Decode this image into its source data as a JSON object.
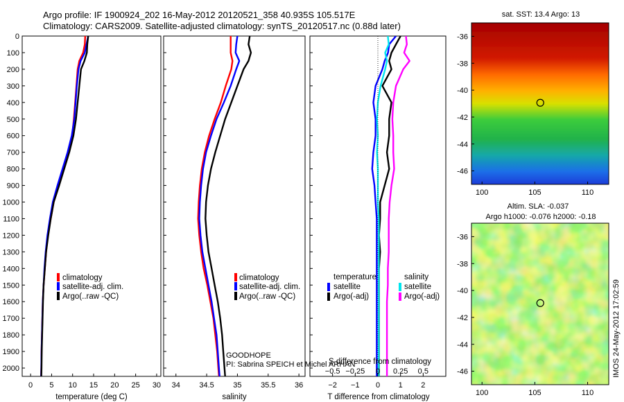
{
  "header": {
    "line1": "Argo profile: IF 1900924_202 16-May-2012 20120521_358 40.935S 105.517E",
    "line2": "Climatology: CARS2009. Satellite-adjusted climatology: synTS_20120517.nc (0.88d later)"
  },
  "depth_ticks": [
    "0",
    "100",
    "200",
    "300",
    "400",
    "500",
    "600",
    "700",
    "800",
    "900",
    "1000",
    "1100",
    "1200",
    "1300",
    "1400",
    "1500",
    "1600",
    "1700",
    "1800",
    "1900",
    "2000"
  ],
  "footer": {
    "watermark": "IMOS 24-May-2012 17:02:59",
    "project": "GOODHOPE",
    "pi": "PI: Sabrina SPEICH et Michel ARHAN"
  },
  "colors": {
    "climatology": "#ff0000",
    "satellite": "#0000ff",
    "argo": "#000000",
    "sat_salinity": "#00e5ee",
    "argo_salinity": "#ff00ff"
  },
  "chart_data": [
    {
      "type": "line",
      "id": "temperature",
      "xlabel": "temperature (deg C)",
      "ylabel": "",
      "xlim": [
        -2,
        31
      ],
      "ylim": [
        2050,
        0
      ],
      "xticks": [
        0,
        5,
        10,
        15,
        20,
        25,
        30
      ],
      "legend": {
        "placement": "lower-center",
        "entries": [
          "climatology",
          "satellite-adj. clim.",
          "Argo(..raw -QC)"
        ]
      },
      "depth": [
        0,
        50,
        100,
        150,
        200,
        300,
        400,
        500,
        600,
        700,
        800,
        900,
        1000,
        1100,
        1200,
        1300,
        1400,
        1500,
        1600,
        1700,
        1800,
        1900,
        2000,
        2050
      ],
      "series": [
        {
          "name": "climatology",
          "color": "#ff0000",
          "values": [
            13,
            12.9,
            12.5,
            11.6,
            11.2,
            10.9,
            10.6,
            10.3,
            9.9,
            9.1,
            7.8,
            6.7,
            5.5,
            4.8,
            4.1,
            3.7,
            3.4,
            3.1,
            2.9,
            2.8,
            2.7,
            2.6,
            2.55,
            2.5
          ]
        },
        {
          "name": "satellite-adj. clim.",
          "color": "#0000ff",
          "values": [
            13.7,
            13.3,
            12.9,
            11.9,
            11.4,
            11,
            10.7,
            10.4,
            9.8,
            8.8,
            7.6,
            6.4,
            5.3,
            4.6,
            4,
            3.6,
            3.3,
            3.1,
            2.9,
            2.8,
            2.7,
            2.6,
            2.55,
            2.5
          ]
        },
        {
          "name": "Argo(..raw -QC)",
          "color": "#000000",
          "values": [
            13.7,
            13.5,
            13.4,
            12.8,
            12,
            11.6,
            11.2,
            10.8,
            10.2,
            9.2,
            8,
            6.8,
            5.5,
            4.8,
            4.2,
            3.7,
            3.4,
            3.1,
            2.95,
            2.85,
            2.75,
            2.65,
            2.6,
            2.55
          ]
        }
      ]
    },
    {
      "type": "line",
      "id": "salinity",
      "xlabel": "salinity",
      "ylabel": "",
      "xlim": [
        33.8,
        36.1
      ],
      "ylim": [
        2050,
        0
      ],
      "xticks": [
        34,
        34.5,
        35,
        35.5,
        36
      ],
      "xtick_labels": [
        "34",
        "34.5",
        "35",
        "35.5",
        "36"
      ],
      "legend": {
        "placement": "lower-center",
        "entries": [
          "climatology",
          "satellite-adj. clim.",
          "Argo(..raw -QC)"
        ]
      },
      "depth": [
        0,
        50,
        100,
        150,
        200,
        300,
        400,
        500,
        600,
        700,
        800,
        900,
        1000,
        1100,
        1200,
        1300,
        1400,
        1500,
        1600,
        1700,
        1800,
        1900,
        2000,
        2050
      ],
      "series": [
        {
          "name": "climatology",
          "color": "#ff0000",
          "values": [
            34.89,
            34.89,
            34.89,
            34.92,
            34.9,
            34.81,
            34.73,
            34.63,
            34.54,
            34.47,
            34.42,
            34.39,
            34.37,
            34.36,
            34.38,
            34.41,
            34.45,
            34.51,
            34.56,
            34.61,
            34.64,
            34.67,
            34.69,
            34.7
          ]
        },
        {
          "name": "satellite-adj. clim.",
          "color": "#0000ff",
          "values": [
            35,
            34.98,
            34.97,
            35.03,
            34.98,
            34.89,
            34.78,
            34.66,
            34.57,
            34.49,
            34.44,
            34.41,
            34.39,
            34.38,
            34.4,
            34.43,
            34.48,
            34.53,
            34.58,
            34.62,
            34.66,
            34.68,
            34.7,
            34.71
          ]
        },
        {
          "name": "Argo(..raw -QC)",
          "color": "#000000",
          "values": [
            35.2,
            35.18,
            35.22,
            35.18,
            35.1,
            35,
            34.9,
            34.8,
            34.72,
            34.64,
            34.57,
            34.52,
            34.49,
            34.48,
            34.5,
            34.53,
            34.58,
            34.63,
            34.68,
            34.72,
            34.75,
            34.77,
            34.79,
            34.8
          ]
        }
      ]
    },
    {
      "type": "line",
      "id": "difference",
      "xlabel": "T difference from climatology",
      "xlabel_top": "S difference from climatology",
      "xlim": [
        -3,
        3
      ],
      "ylim": [
        2050,
        0
      ],
      "xticks": [
        -2,
        -1,
        0,
        1,
        2
      ],
      "xtick_labels": [
        "−2",
        "−1",
        "0",
        "1",
        "2"
      ],
      "xticks_top": [
        -0.5,
        -0.25,
        0,
        0.25,
        0.5
      ],
      "xtick_labels_top": [
        "−0.5",
        "−0.25",
        "0",
        "0.25",
        "0.5"
      ],
      "legend": {
        "placement": "lower-center",
        "titles": [
          "temperature",
          "salinity"
        ],
        "entries": [
          "satellite",
          "Argo(-adj)",
          "satellite",
          "Argo(-adj)"
        ]
      },
      "depth": [
        0,
        50,
        100,
        150,
        200,
        300,
        400,
        500,
        600,
        700,
        800,
        900,
        1000,
        1100,
        1200,
        1300,
        1400,
        1500,
        1600,
        1700,
        1800,
        1900,
        2000,
        2050
      ],
      "series": [
        {
          "name": "satellite",
          "quantity": "temperature",
          "color": "#0000ff",
          "values": [
            0.8,
            0.5,
            0.45,
            0.3,
            0.2,
            -0.1,
            -0.2,
            -0.1,
            -0.1,
            -0.2,
            -0.25,
            -0.15,
            -0.1,
            -0.05,
            -0.05,
            -0.05,
            -0.05,
            -0.05,
            -0.05,
            -0.05,
            -0.05,
            -0.05,
            -0.05,
            -0.05
          ]
        },
        {
          "name": "Argo(-adj)",
          "quantity": "temperature",
          "color": "#000000",
          "values": [
            1.0,
            0.8,
            0.6,
            0.5,
            0.6,
            0.2,
            0.6,
            0.5,
            0.5,
            0.4,
            0.5,
            0.3,
            0.1,
            0.1,
            0.05,
            0.1,
            0.05,
            0.05,
            0.05,
            0.05,
            0.05,
            0.05,
            0.05,
            0.05
          ]
        },
        {
          "name": "satellite",
          "quantity": "salinity",
          "color": "#00e5ee",
          "values": [
            0.11,
            0.12,
            0.08,
            0.1,
            0.08,
            0.03,
            0.0,
            -0.01,
            0.0,
            -0.01,
            0.0,
            0.0,
            0.0,
            0.01,
            0.01,
            0.01,
            0.01,
            0.01,
            0.01,
            0.01,
            0.01,
            0.01,
            0.01,
            0.01
          ]
        },
        {
          "name": "Argo(-adj)",
          "quantity": "salinity",
          "color": "#ff00ff",
          "values": [
            0.31,
            0.32,
            0.29,
            0.35,
            0.28,
            0.2,
            0.17,
            0.16,
            0.17,
            0.17,
            0.18,
            0.15,
            0.13,
            0.12,
            0.12,
            0.12,
            0.11,
            0.11,
            0.1,
            0.1,
            0.1,
            0.1,
            0.1,
            0.1
          ]
        }
      ]
    },
    {
      "type": "heatmap",
      "id": "sst_map",
      "title": "sat. SST: 13.4  Argo: 13",
      "xlim": [
        99,
        112
      ],
      "ylim": [
        -47,
        -35
      ],
      "xticks": [
        100,
        105,
        110
      ],
      "yticks": [
        -36,
        -38,
        -40,
        -42,
        -44,
        -46
      ],
      "marker": {
        "lon": 105.517,
        "lat": -40.935
      }
    },
    {
      "type": "heatmap",
      "id": "sla_map",
      "title": "Altim. SLA: -0.037",
      "subtitle": "Argo h1000: -0.076  h2000: -0.18",
      "xlim": [
        99,
        112
      ],
      "ylim": [
        -47,
        -35
      ],
      "xticks": [
        100,
        105,
        110
      ],
      "yticks": [
        -36,
        -38,
        -40,
        -42,
        -44,
        -46
      ],
      "marker": {
        "lon": 105.517,
        "lat": -40.935
      }
    }
  ]
}
